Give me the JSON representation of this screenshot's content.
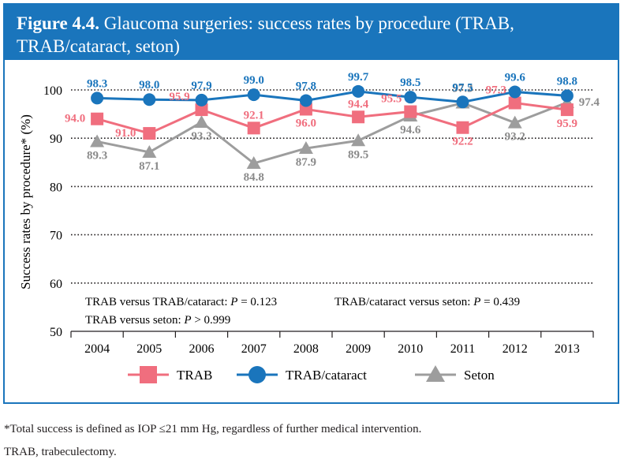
{
  "header": {
    "figure_label": "Figure 4.4.",
    "title_line1": "Glaucoma surgeries: success rates by procedure (TRAB,",
    "title_line2": "TRAB/cataract, seton)"
  },
  "chart_data": {
    "type": "line",
    "title": "Glaucoma surgeries: success rates by procedure (TRAB, TRAB/cataract, seton)",
    "ylabel": "Success rates by procedure* (%)",
    "xlabel": "",
    "ylim": [
      50,
      100
    ],
    "yticks": [
      50,
      60,
      70,
      80,
      90,
      100
    ],
    "grid": "dotted horizontal",
    "categories": [
      "2004",
      "2005",
      "2006",
      "2007",
      "2008",
      "2009",
      "2010",
      "2011",
      "2012",
      "2013"
    ],
    "series": [
      {
        "name": "TRAB",
        "color": "#f06e7e",
        "marker": "square",
        "values": [
          94.0,
          91.0,
          95.9,
          92.1,
          96.0,
          94.4,
          95.5,
          92.2,
          97.3,
          95.9
        ],
        "labels": [
          "94.0",
          "91.0",
          "95.9",
          "92.1",
          "96.0",
          "94.4",
          "95.5",
          "92.2",
          "97.3",
          "95.9"
        ]
      },
      {
        "name": "TRAB/cataract",
        "color": "#1a75bc",
        "marker": "circle",
        "values": [
          98.3,
          98.0,
          97.9,
          99.0,
          97.8,
          99.7,
          98.5,
          97.5,
          99.6,
          98.8
        ],
        "labels": [
          "98.3",
          "98.0",
          "97.9",
          "99.0",
          "97.8",
          "99.7",
          "98.5",
          "97.5",
          "99.6",
          "98.8"
        ]
      },
      {
        "name": "Seton",
        "color": "#9d9d9d",
        "marker": "triangle",
        "values": [
          89.3,
          87.1,
          93.3,
          84.8,
          87.9,
          89.5,
          94.6,
          97.3,
          93.2,
          97.4
        ],
        "labels": [
          "89.3",
          "87.1",
          "93.3",
          "84.8",
          "87.9",
          "89.5",
          "94.6",
          "97.3",
          "93.2",
          "97.4"
        ]
      }
    ],
    "legend_position": "bottom",
    "annotations": [
      {
        "label": "TRAB versus TRAB/cataract:",
        "p": "P",
        "value": "= 0.123"
      },
      {
        "label": "TRAB/cataract versus seton:",
        "p": "P",
        "value": "= 0.439"
      },
      {
        "label": "TRAB versus seton:",
        "p": "P",
        "value": "> 0.999"
      }
    ]
  },
  "footnotes": {
    "line1": "*Total success is defined as IOP ≤21 mm Hg, regardless of further medical intervention.",
    "line2": "TRAB, trabeculectomy."
  }
}
